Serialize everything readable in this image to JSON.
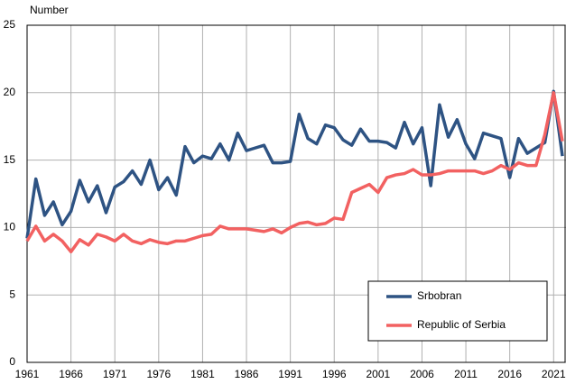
{
  "chart_data": {
    "type": "line",
    "y_label": "Number",
    "x": [
      1961,
      1962,
      1963,
      1964,
      1965,
      1966,
      1967,
      1968,
      1969,
      1970,
      1971,
      1972,
      1973,
      1974,
      1975,
      1976,
      1977,
      1978,
      1979,
      1980,
      1981,
      1982,
      1983,
      1984,
      1985,
      1986,
      1987,
      1988,
      1989,
      1990,
      1991,
      1992,
      1993,
      1994,
      1995,
      1996,
      1997,
      1998,
      1999,
      2000,
      2001,
      2002,
      2003,
      2004,
      2005,
      2006,
      2007,
      2008,
      2009,
      2010,
      2011,
      2012,
      2013,
      2014,
      2015,
      2016,
      2017,
      2018,
      2019,
      2020,
      2021,
      2022
    ],
    "series": [
      {
        "name": "Srbobran",
        "color": "#2e5383",
        "values": [
          9.2,
          13.6,
          10.9,
          11.9,
          10.2,
          11.2,
          13.5,
          11.9,
          13.1,
          11.1,
          13.0,
          13.4,
          14.2,
          13.2,
          15.0,
          12.8,
          13.7,
          12.4,
          16.0,
          14.8,
          15.3,
          15.1,
          16.2,
          15.0,
          17.0,
          15.7,
          15.9,
          16.1,
          14.8,
          14.8,
          14.9,
          18.4,
          16.6,
          16.2,
          17.6,
          17.4,
          16.5,
          16.1,
          17.3,
          16.4,
          16.4,
          16.3,
          15.9,
          17.8,
          16.2,
          17.4,
          13.1,
          19.1,
          16.7,
          18.0,
          16.2,
          15.1,
          17.0,
          16.8,
          16.6,
          13.7,
          16.6,
          15.5,
          15.9,
          16.3,
          20.1,
          15.3
        ]
      },
      {
        "name": "Republic of Serbia",
        "color": "#f26161",
        "values": [
          9.0,
          10.1,
          9.0,
          9.5,
          9.0,
          8.2,
          9.1,
          8.7,
          9.5,
          9.3,
          9.0,
          9.5,
          9.0,
          8.8,
          9.1,
          8.9,
          8.8,
          9.0,
          9.0,
          9.2,
          9.4,
          9.5,
          10.1,
          9.9,
          9.9,
          9.9,
          9.8,
          9.7,
          9.9,
          9.6,
          10.0,
          10.3,
          10.4,
          10.2,
          10.3,
          10.7,
          10.6,
          12.6,
          12.9,
          13.2,
          12.6,
          13.7,
          13.9,
          14.0,
          14.3,
          13.9,
          13.9,
          14.0,
          14.2,
          14.2,
          14.2,
          14.2,
          14.0,
          14.2,
          14.6,
          14.3,
          14.8,
          14.6,
          14.6,
          16.9,
          20.0,
          16.4
        ]
      }
    ],
    "xlim": [
      1961,
      2022
    ],
    "xticks": [
      1961,
      1966,
      1971,
      1976,
      1981,
      1986,
      1991,
      1996,
      2001,
      2006,
      2011,
      2016,
      2021
    ],
    "ylim": [
      0,
      25
    ],
    "yticks": [
      0,
      5,
      10,
      15,
      20,
      25
    ],
    "grid": true,
    "legend": "lower right"
  }
}
